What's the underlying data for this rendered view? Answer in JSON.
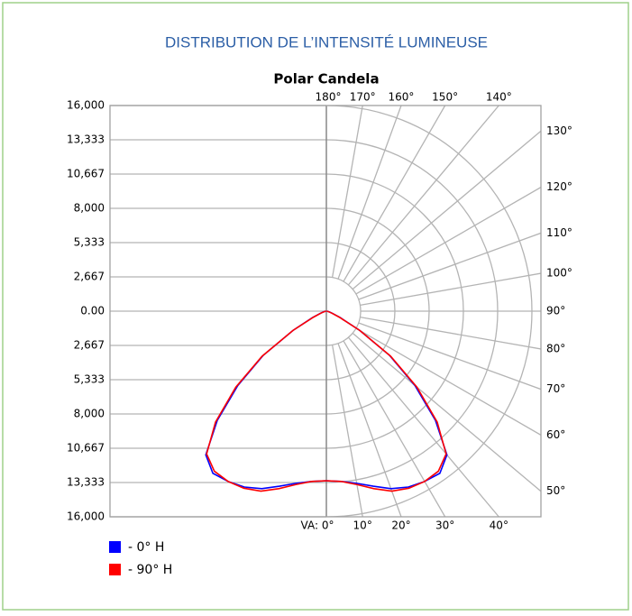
{
  "chart_data": {
    "type": "polar",
    "title": "DISTRIBUTION DE L’INTENSITÉ LUMINEUSE",
    "subtitle": "Polar Candela",
    "rlim": [
      0,
      16000
    ],
    "rticks": [
      {
        "value": 0,
        "label": "0.00"
      },
      {
        "value": 2667,
        "label": "2,667"
      },
      {
        "value": 5333,
        "label": "5,333"
      },
      {
        "value": 8000,
        "label": "8,000"
      },
      {
        "value": 10667,
        "label": "10,667"
      },
      {
        "value": 13333,
        "label": "13,333"
      },
      {
        "value": 16000,
        "label": "16,000"
      }
    ],
    "angle_ticks": [
      {
        "value": 0,
        "label": "VA: 0°"
      },
      {
        "value": 10,
        "label": "10°"
      },
      {
        "value": 20,
        "label": "20°"
      },
      {
        "value": 30,
        "label": "30°"
      },
      {
        "value": 40,
        "label": "40°"
      },
      {
        "value": 50,
        "label": "50°"
      },
      {
        "value": 60,
        "label": "60°"
      },
      {
        "value": 70,
        "label": "70°"
      },
      {
        "value": 80,
        "label": "80°"
      },
      {
        "value": 90,
        "label": "90°"
      },
      {
        "value": 100,
        "label": "100°"
      },
      {
        "value": 110,
        "label": "110°"
      },
      {
        "value": 120,
        "label": "120°"
      },
      {
        "value": 130,
        "label": "130°"
      },
      {
        "value": 140,
        "label": "140°"
      },
      {
        "value": 150,
        "label": "150°"
      },
      {
        "value": 160,
        "label": "160°"
      },
      {
        "value": 170,
        "label": "170°"
      },
      {
        "value": 180,
        "label": "180°"
      }
    ],
    "angles": [
      0,
      5,
      10,
      15,
      20,
      25,
      30,
      35,
      40,
      45,
      50,
      55,
      60,
      65,
      70,
      75,
      80,
      85,
      90
    ],
    "series": [
      {
        "name": "- 0° H",
        "color": "#0000ff",
        "values": [
          13200,
          13300,
          13600,
          14100,
          14700,
          15100,
          15300,
          15400,
          14600,
          12000,
          9000,
          6000,
          3000,
          1200,
          500,
          250,
          120,
          60,
          30
        ]
      },
      {
        "name": "- 90° H",
        "color": "#ff0000",
        "values": [
          13200,
          13300,
          13700,
          14300,
          14900,
          15200,
          15300,
          15200,
          14500,
          12200,
          9200,
          6100,
          3000,
          1100,
          450,
          220,
          100,
          50,
          25
        ]
      }
    ]
  }
}
